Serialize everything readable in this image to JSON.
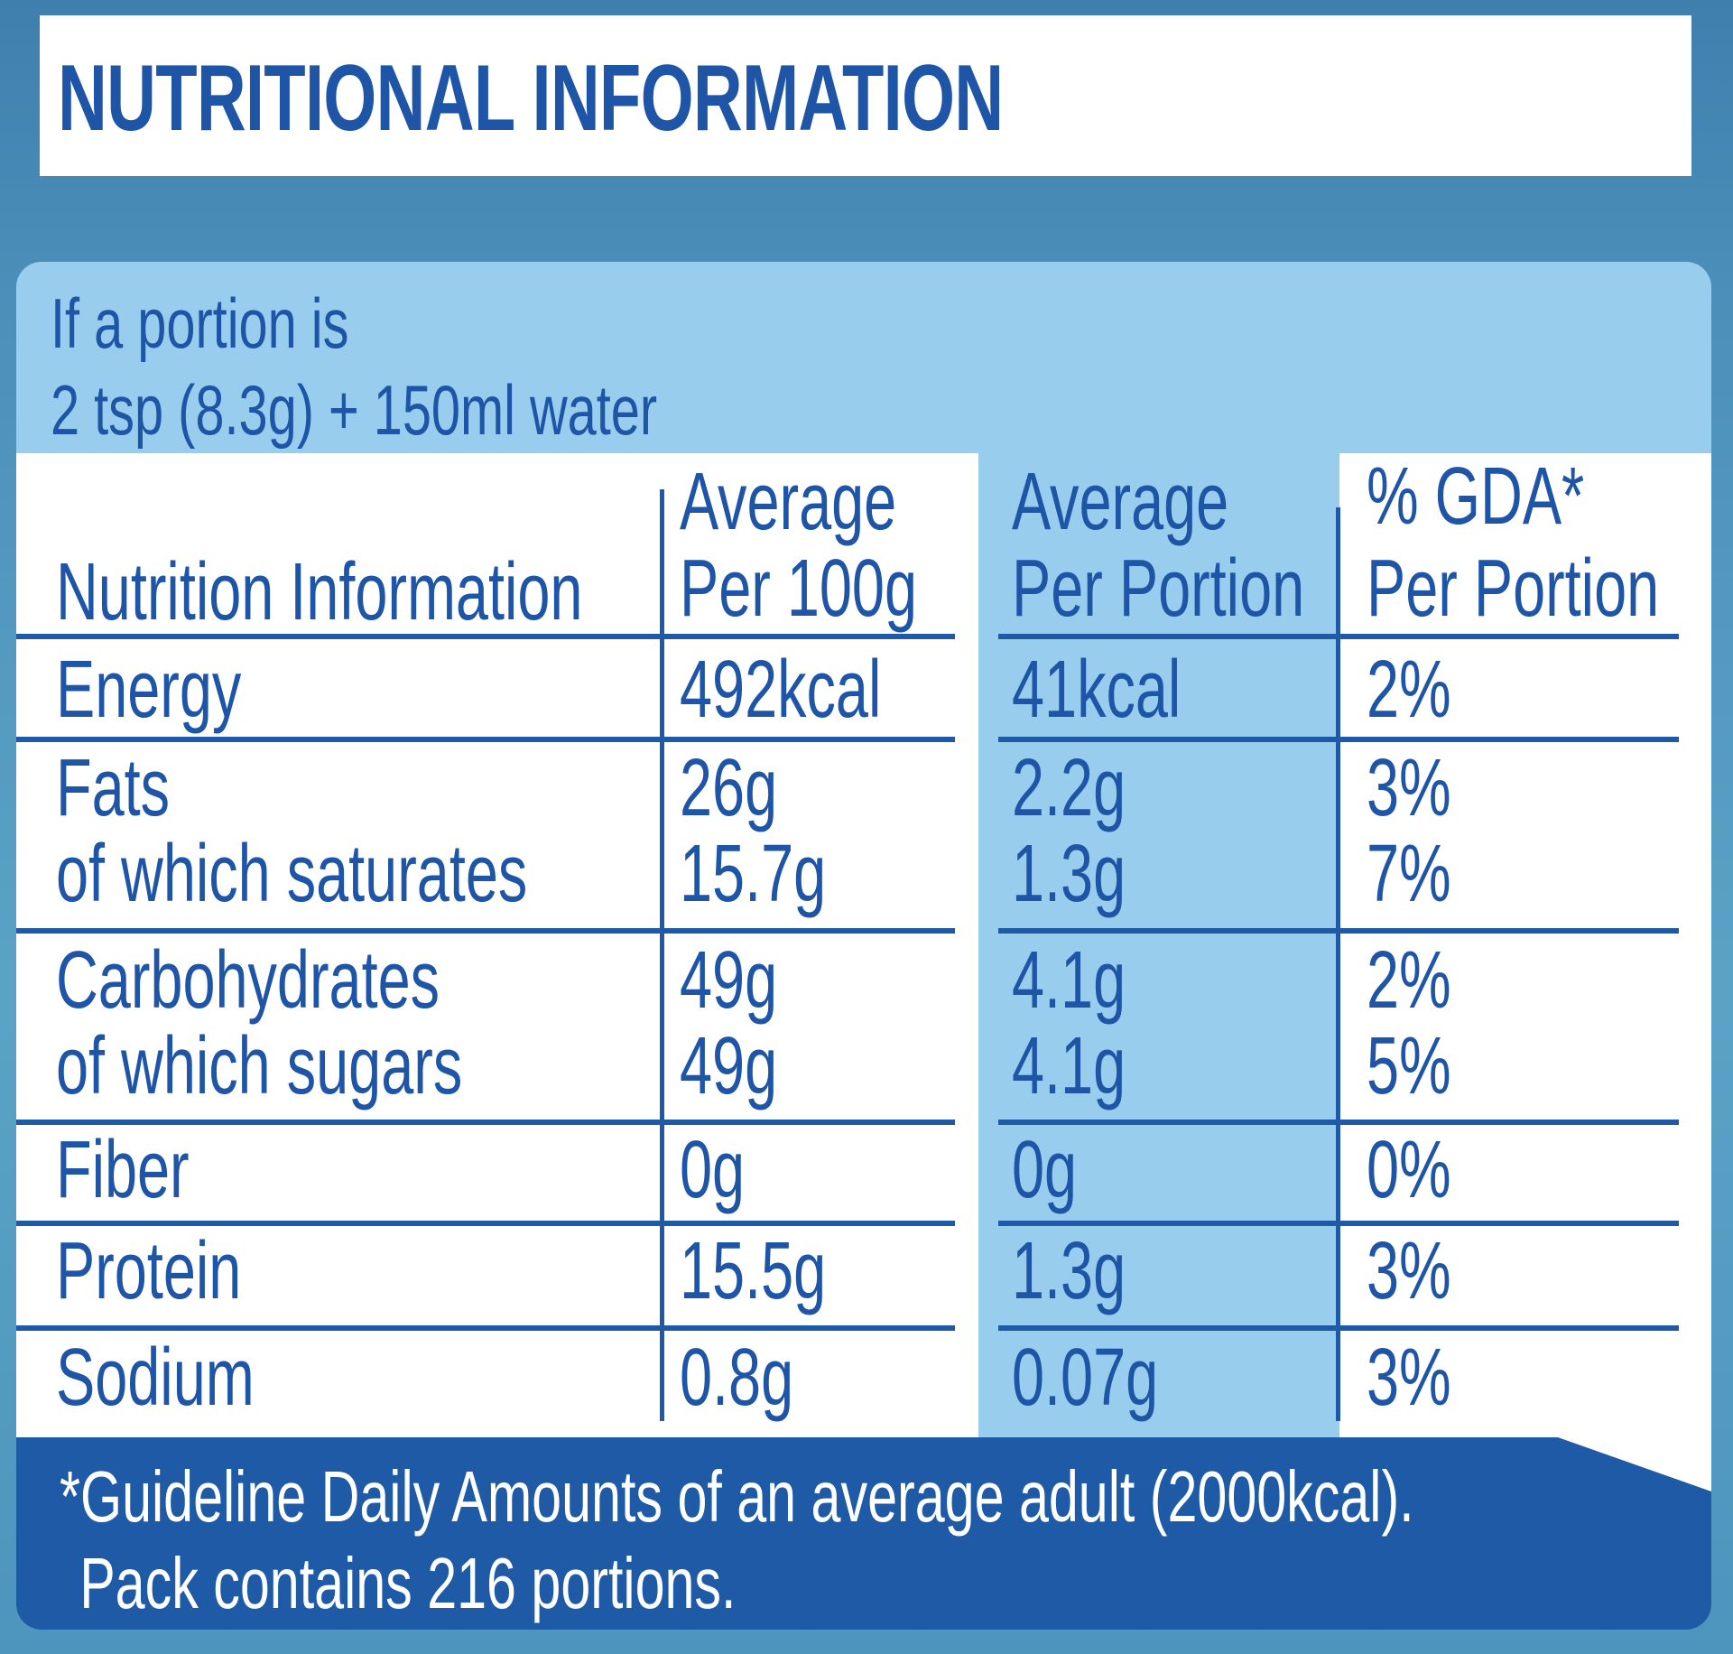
{
  "title": "NUTRITIONAL INFORMATION",
  "portion": {
    "line1": "If a portion is",
    "line2": "2 tsp (8.3g) + 150ml water"
  },
  "table": {
    "headers": {
      "nutrient": "Nutrition Information",
      "per100_line1": "Average",
      "per100_line2": "Per 100g",
      "perportion_line1": "Average",
      "perportion_line2": "Per Portion",
      "gda_line1": "% GDA*",
      "gda_line2": "Per Portion"
    },
    "rows": [
      {
        "nutrient": "Energy",
        "per100": "492kcal",
        "perportion": "41kcal",
        "gda": "2%"
      },
      {
        "nutrient": "Fats",
        "per100": "26g",
        "perportion": "2.2g",
        "gda": "3%"
      },
      {
        "nutrient": "of which saturates",
        "per100": "15.7g",
        "perportion": "1.3g",
        "gda": "7%"
      },
      {
        "nutrient": "Carbohydrates",
        "per100": "49g",
        "perportion": "4.1g",
        "gda": "2%"
      },
      {
        "nutrient": "of which sugars",
        "per100": "49g",
        "perportion": "4.1g",
        "gda": "5%"
      },
      {
        "nutrient": "Fiber",
        "per100": "0g",
        "perportion": "0g",
        "gda": "0%"
      },
      {
        "nutrient": "Protein",
        "per100": "15.5g",
        "perportion": "1.3g",
        "gda": "3%"
      },
      {
        "nutrient": "Sodium",
        "per100": "0.8g",
        "perportion": "0.07g",
        "gda": "3%"
      }
    ]
  },
  "footer": {
    "line1": "*Guideline Daily Amounts of an average adult (2000kcal).",
    "line2": "Pack contains 216 portions."
  },
  "colors": {
    "text_blue": "#1e55a6",
    "panel_light_blue": "#98cdee",
    "footer_blue": "#1f5aa6"
  }
}
